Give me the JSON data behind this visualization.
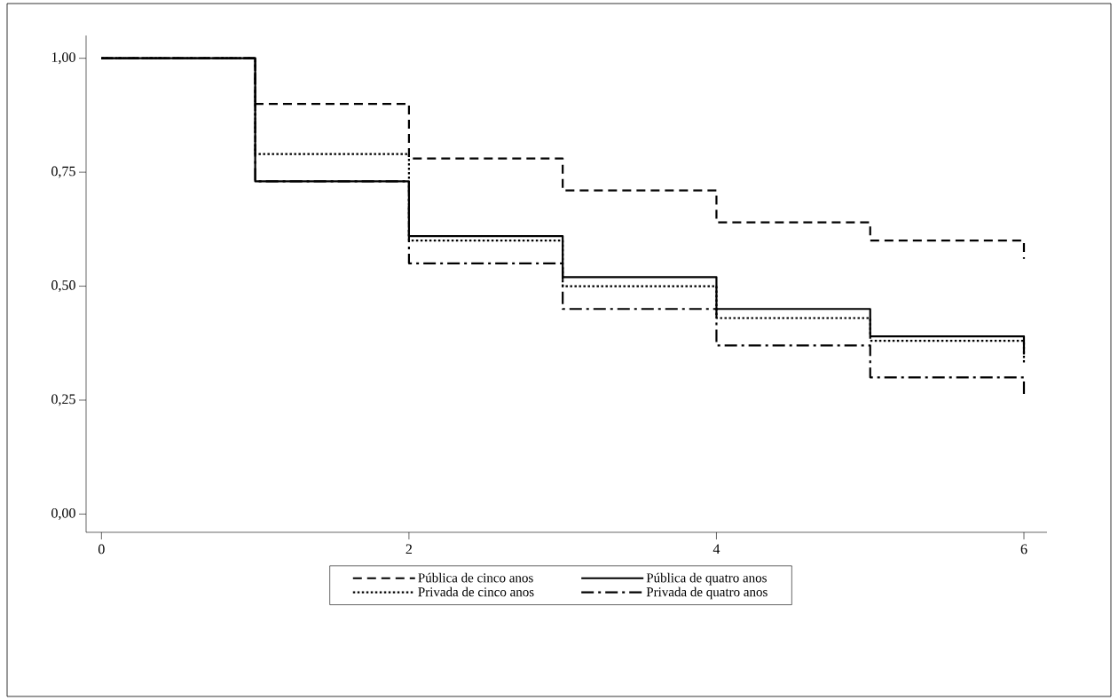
{
  "chart_data": {
    "type": "step",
    "x": [
      0,
      1,
      2,
      3,
      4,
      5,
      6
    ],
    "series": [
      {
        "name": "Pública de cinco anos",
        "color": "#000000",
        "line_style": "dashed",
        "values": [
          1,
          0.9,
          0.78,
          0.71,
          0.64,
          0.6,
          0.56
        ]
      },
      {
        "name": "Pública de quatro anos",
        "color": "#000000",
        "line_style": "solid",
        "values": [
          1,
          0.73,
          0.61,
          0.52,
          0.45,
          0.39,
          0.35
        ]
      },
      {
        "name": "Privada de cinco anos",
        "color": "#000000",
        "line_style": "dotted",
        "values": [
          1,
          0.79,
          0.6,
          0.5,
          0.43,
          0.38,
          0.33
        ]
      },
      {
        "name": "Privada de quatro anos",
        "color": "#000000",
        "line_style": "dashdot",
        "values": [
          1,
          0.73,
          0.55,
          0.45,
          0.37,
          0.3,
          0.26
        ]
      }
    ],
    "xlim": [
      -0.1,
      6.15
    ],
    "ylim": [
      -0.04,
      1.05
    ],
    "xticks": [
      0,
      2,
      4,
      6
    ],
    "yticks": [
      {
        "value": 0,
        "label": "0,00"
      },
      {
        "value": 0.25,
        "label": "0,25"
      },
      {
        "value": 0.5,
        "label": "0,50"
      },
      {
        "value": 0.75,
        "label": "0,75"
      },
      {
        "value": 1,
        "label": "1,00"
      }
    ],
    "grid": false,
    "legend": "bottom"
  }
}
